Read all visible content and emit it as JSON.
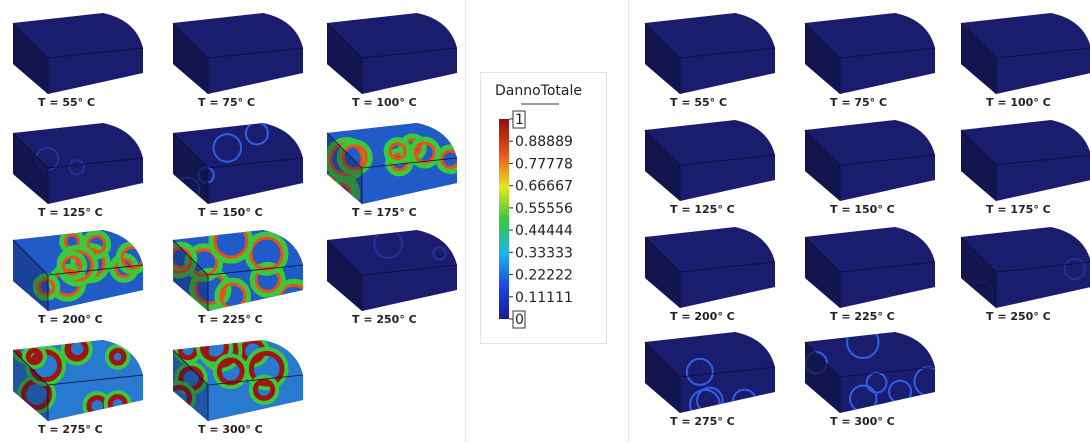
{
  "left_panel": {
    "labels": [
      "T = 55° C",
      "T = 75° C",
      "T = 100° C",
      "T = 125° C",
      "T = 150° C",
      "T = 175° C",
      "T = 200° C",
      "T = 225° C",
      "T = 250° C",
      "T = 275° C",
      "T = 300° C"
    ]
  },
  "right_panel": {
    "labels": [
      "T = 55° C",
      "T = 75° C",
      "T = 100° C",
      "T = 125° C",
      "T = 150° C",
      "T = 175° C",
      "T = 200° C",
      "T = 225° C",
      "T = 250° C",
      "T = 275° C",
      "T = 300° C"
    ]
  },
  "colorbar": {
    "title": "DannoTotale",
    "ticks": [
      0,
      0.11111,
      0.22222,
      0.33333,
      0.44444,
      0.55556,
      0.66667,
      0.77778,
      0.88889,
      1
    ]
  }
}
